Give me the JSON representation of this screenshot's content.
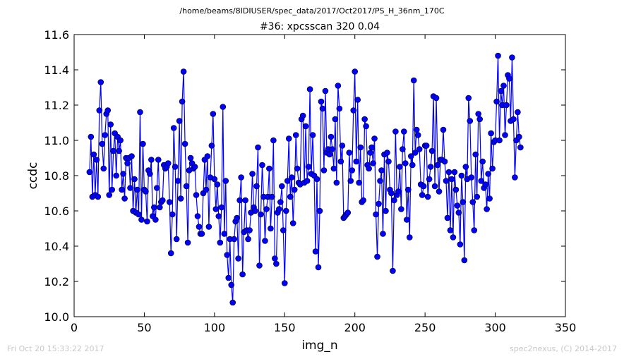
{
  "suptitle": "/home/beams/8IDIUSER/spec_data/2017/Oct2017/PS_H_36nm_170C",
  "footer": {
    "left": "Fri Oct 20 15:33:22 2017",
    "right": "spec2nexus, (C) 2014-2017"
  },
  "chart_data": {
    "type": "line",
    "title": "#36: xpcsscan 320 0.04",
    "xlabel": "img_n",
    "ylabel": "ccdc",
    "xlim": [
      0,
      350
    ],
    "ylim": [
      10.0,
      11.6
    ],
    "xticks": [
      "0",
      "50",
      "100",
      "150",
      "200",
      "250",
      "300",
      "350"
    ],
    "yticks": [
      "10.0",
      "10.2",
      "10.4",
      "10.6",
      "10.8",
      "11.0",
      "11.2",
      "11.4",
      "11.6"
    ],
    "grid": false,
    "marker": "circle",
    "color": "#0000ff",
    "x_start": 11,
    "values": [
      10.82,
      11.02,
      10.68,
      10.92,
      10.69,
      10.89,
      10.68,
      11.17,
      11.33,
      10.98,
      10.84,
      11.03,
      11.15,
      11.17,
      10.69,
      11.09,
      10.72,
      10.94,
      11.04,
      10.8,
      11.02,
      10.94,
      11.0,
      10.72,
      10.81,
      10.67,
      10.9,
      10.87,
      10.9,
      10.73,
      10.91,
      10.6,
      10.78,
      10.59,
      10.72,
      10.58,
      11.16,
      10.55,
      10.98,
      10.72,
      10.71,
      10.54,
      10.83,
      10.81,
      10.89,
      10.57,
      10.62,
      10.55,
      10.73,
      10.89,
      10.62,
      10.65,
      10.66,
      10.86,
      10.84,
      10.85,
      10.87,
      10.65,
      10.36,
      10.58,
      11.07,
      10.85,
      10.44,
      10.77,
      11.11,
      10.67,
      11.22,
      11.39,
      10.98,
      10.74,
      10.42,
      10.83,
      10.9,
      10.87,
      10.84,
      10.85,
      10.69,
      10.57,
      10.51,
      10.47,
      10.47,
      10.7,
      10.89,
      10.72,
      10.91,
      10.51,
      10.79,
      10.97,
      11.15,
      10.78,
      10.61,
      10.75,
      10.57,
      10.42,
      10.62,
      11.19,
      10.47,
      10.77,
      10.35,
      10.22,
      10.44,
      10.18,
      10.08,
      10.44,
      10.54,
      10.56,
      10.33,
      10.66,
      10.79,
      10.24,
      10.48,
      10.66,
      10.49,
      10.44,
      10.49,
      10.59,
      10.81,
      10.62,
      10.6,
      10.74,
      10.96,
      10.29,
      10.58,
      10.86,
      10.68,
      10.43,
      10.61,
      10.68,
      10.84,
      10.5,
      10.68,
      11.0,
      10.33,
      10.3,
      10.59,
      10.61,
      10.65,
      10.74,
      10.49,
      10.19,
      10.6,
      10.77,
      11.01,
      10.68,
      10.79,
      10.53,
      10.72,
      11.03,
      10.84,
      10.76,
      10.75,
      11.12,
      11.14,
      10.76,
      11.08,
      10.77,
      10.85,
      11.29,
      10.81,
      11.03,
      10.8,
      10.37,
      10.78,
      10.28,
      10.6,
      11.22,
      11.18,
      10.83,
      11.28,
      10.93,
      10.95,
      10.92,
      11.02,
      10.95,
      10.84,
      11.12,
      10.76,
      11.31,
      11.18,
      10.88,
      10.97,
      10.56,
      10.57,
      10.58,
      10.59,
      10.93,
      10.77,
      10.83,
      11.17,
      11.39,
      10.88,
      11.23,
      10.76,
      10.96,
      10.65,
      10.66,
      11.12,
      11.08,
      10.86,
      10.84,
      10.93,
      10.96,
      10.87,
      11.01,
      10.58,
      10.34,
      10.64,
      10.77,
      10.83,
      10.47,
      10.92,
      10.6,
      10.93,
      10.88,
      10.72,
      10.7,
      10.26,
      10.66,
      11.05,
      10.69,
      10.71,
      10.85,
      10.61,
      10.95,
      11.05,
      10.87,
      10.55,
      10.72,
      10.45,
      10.91,
      10.86,
      11.34,
      10.93,
      11.06,
      11.03,
      10.95,
      10.75,
      10.69,
      10.74,
      10.97,
      10.97,
      10.68,
      10.78,
      10.85,
      10.94,
      11.25,
      10.74,
      11.24,
      10.86,
      10.71,
      10.89,
      10.89,
      11.06,
      10.88,
      10.77,
      10.56,
      10.82,
      10.49,
      10.78,
      10.45,
      10.82,
      10.72,
      10.63,
      10.59,
      10.41,
      10.8,
      10.65,
      10.32,
      10.85,
      10.78,
      11.24,
      11.11,
      10.79,
      10.65,
      10.49,
      10.92,
      10.68,
      11.15,
      11.12,
      10.77,
      10.88,
      10.73,
      10.75,
      10.61,
      10.81,
      10.67,
      11.04,
      10.84,
      10.99,
      11.0,
      11.22,
      11.48,
      11.0,
      11.28,
      11.2,
      11.31,
      11.03,
      11.2,
      11.37,
      11.35,
      11.11,
      11.47,
      11.12,
      10.79,
      11.0,
      11.16,
      11.02,
      10.96
    ]
  }
}
